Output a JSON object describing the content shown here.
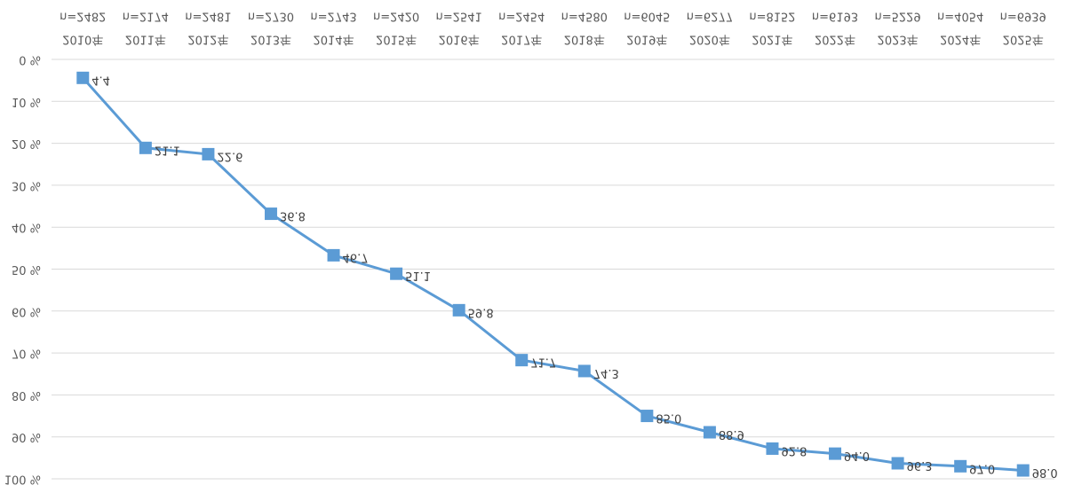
{
  "chart_data": {
    "type": "line",
    "categories": [
      "2010年",
      "2011年",
      "2012年",
      "2013年",
      "2014年",
      "2015年",
      "2016年",
      "2017年",
      "2018年",
      "2019年",
      "2020年",
      "2021年",
      "2022年",
      "2023年",
      "2024年",
      "2025年"
    ],
    "sample_sizes": [
      "n=2482",
      "n=2174",
      "n=2481",
      "n=2730",
      "n=2743",
      "n=2420",
      "n=2541",
      "n=2454",
      "n=4580",
      "n=6045",
      "n=6277",
      "n=8152",
      "n=6193",
      "n=5229",
      "n=4054",
      "n=6939"
    ],
    "series": [
      {
        "color": "#5b9bd5",
        "values": [
          4.4,
          21.1,
          22.6,
          36.8,
          46.7,
          51.1,
          59.8,
          71.7,
          74.3,
          85.0,
          88.9,
          92.8,
          94.0,
          96.3,
          97.0,
          98.0
        ],
        "value_labels": [
          "4.4",
          "21.1",
          "22.6",
          "36.8",
          "46.7",
          "51.1",
          "59.8",
          "71.7",
          "74.3",
          "85.0",
          "88.9",
          "92.8",
          "94.0",
          "96.3",
          "97.0",
          "98.0"
        ]
      }
    ],
    "ylim": [
      0,
      100
    ],
    "yticks": [
      {
        "value": 0,
        "label": "0 %"
      },
      {
        "value": 10,
        "label": "10 %"
      },
      {
        "value": 20,
        "label": "20 %"
      },
      {
        "value": 30,
        "label": "30 %"
      },
      {
        "value": 40,
        "label": "40 %"
      },
      {
        "value": 50,
        "label": "50 %"
      },
      {
        "value": 60,
        "label": "60 %"
      },
      {
        "value": 70,
        "label": "70 %"
      },
      {
        "value": 80,
        "label": "80 %"
      },
      {
        "value": 90,
        "label": "90 %"
      },
      {
        "value": 100,
        "label": "100 %"
      }
    ],
    "grid": true,
    "flipped_vertically": true
  }
}
